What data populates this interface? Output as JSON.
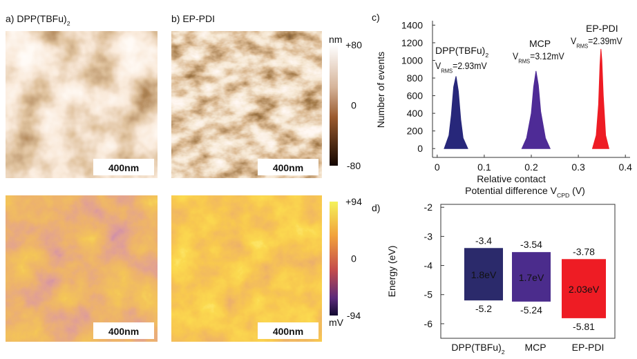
{
  "images": [
    {
      "label": "a) DPP(TBFu)",
      "label_sub": "2",
      "scale_bar": "400nm"
    },
    {
      "label": "b) EP-PDI",
      "scale_bar": "400nm"
    },
    {
      "scale_bar": "400nm"
    },
    {
      "scale_bar": "400nm"
    }
  ],
  "colorbars": [
    {
      "unit": "nm",
      "lim": [
        -80,
        80
      ],
      "ticks": [
        {
          "value": 80,
          "label": "+80"
        },
        0,
        -80
      ]
    },
    {
      "unit": "mV",
      "lim": [
        -94,
        94
      ],
      "ticks": [
        {
          "value": 94,
          "label": "+94"
        },
        0,
        -94
      ]
    }
  ],
  "chart_data": [
    {
      "type": "area",
      "panel": "c)",
      "ylabel": "Number of events",
      "xlabel": [
        "Relative contact",
        "Potential difference V"
      ],
      "xlabel_sub": "CPD",
      "xlabel_end": " (V)",
      "annotation_symbol": "V",
      "annotation_sub": "RMS",
      "xlim": [
        -0.01,
        0.41
      ],
      "xticks": [
        0.0,
        0.1,
        0.2,
        0.3,
        0.4
      ],
      "ylim": [
        -100,
        1450
      ],
      "yticks": [
        0,
        200,
        400,
        600,
        800,
        1000,
        1200,
        1400
      ],
      "series": [
        {
          "name": "DPP(TBFu)",
          "name_sub": "2",
          "annotation": "=2.93mV",
          "color": "#27277a",
          "x": [
            0.015,
            0.025,
            0.03,
            0.035,
            0.04,
            0.045,
            0.05,
            0.055,
            0.065
          ],
          "values": [
            0,
            150,
            380,
            700,
            820,
            650,
            330,
            120,
            0
          ]
        },
        {
          "name": "MCP",
          "annotation": "=3.12mV",
          "color": "#4e2b96",
          "x": [
            0.18,
            0.19,
            0.2,
            0.205,
            0.21,
            0.215,
            0.22,
            0.23,
            0.24
          ],
          "values": [
            0,
            120,
            400,
            700,
            880,
            720,
            420,
            120,
            0
          ]
        },
        {
          "name": "EP-PDI",
          "annotation": "=2.39mV",
          "color": "#ee1c24",
          "x": [
            0.33,
            0.338,
            0.343,
            0.346,
            0.348,
            0.35,
            0.353,
            0.358,
            0.365
          ],
          "values": [
            0,
            150,
            500,
            950,
            1130,
            1000,
            600,
            150,
            0
          ]
        }
      ]
    },
    {
      "type": "floating-bar",
      "panel": "d)",
      "ylabel": "Energy (eV)",
      "categories": [
        "DPP(TBFu)",
        "MCP",
        "EP-PDI"
      ],
      "first_category_sub": "2",
      "colors": [
        "#2b2a6b",
        "#4b2c8c",
        "#ee1c24"
      ],
      "lumo": [
        -3.4,
        -3.54,
        -3.78
      ],
      "homo": [
        -5.2,
        -5.24,
        -5.81
      ],
      "gap_labels": [
        "1.8eV",
        "1.7eV",
        "2.03eV"
      ],
      "ylim": [
        -6.5,
        -1.9
      ],
      "yticks": [
        -2,
        -3,
        -4,
        -5,
        -6
      ]
    }
  ]
}
